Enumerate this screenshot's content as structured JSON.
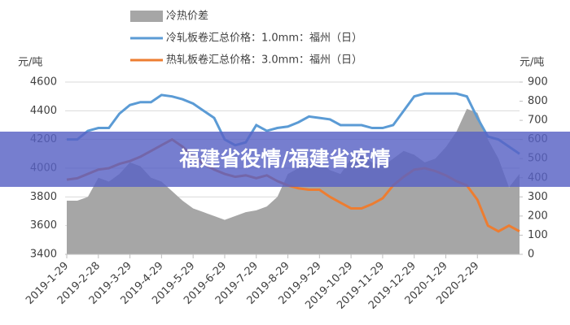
{
  "chart_data": {
    "type": "line",
    "y_unit_label": "元/吨",
    "y2_unit_label": "元/吨",
    "categories": [
      "2019-1-29",
      null,
      null,
      "2019-2-28",
      null,
      null,
      "2019-3-29",
      null,
      null,
      "2019-4-29",
      null,
      null,
      "2019-5-29",
      null,
      null,
      "2019-6-29",
      null,
      null,
      "2019-7-29",
      null,
      null,
      "2019-8-29",
      null,
      null,
      "2019-9-29",
      null,
      null,
      "2019-10-29",
      null,
      null,
      "2019-11-29",
      null,
      null,
      "2019-12-29",
      null,
      null,
      "2020-1-29",
      null,
      null,
      "2020-2-29",
      null,
      null,
      null,
      null
    ],
    "series": [
      {
        "name": "冷热价差",
        "kind": "area",
        "axis": "y2",
        "color": "#a6a6a6",
        "values": [
          280,
          280,
          300,
          400,
          380,
          420,
          480,
          460,
          400,
          380,
          330,
          280,
          240,
          220,
          200,
          180,
          200,
          220,
          230,
          250,
          300,
          420,
          450,
          470,
          480,
          440,
          420,
          500,
          520,
          480,
          460,
          500,
          540,
          520,
          480,
          500,
          560,
          640,
          760,
          740,
          600,
          500,
          350,
          420
        ]
      },
      {
        "name": "冷轧板卷汇总价格：1.0mm：福州（日）",
        "kind": "line",
        "axis": "y",
        "color": "#5b9bd5",
        "values": [
          4200,
          4200,
          4260,
          4280,
          4280,
          4380,
          4440,
          4460,
          4460,
          4510,
          4500,
          4480,
          4450,
          4400,
          4350,
          4200,
          4160,
          4180,
          4300,
          4260,
          4280,
          4290,
          4320,
          4360,
          4350,
          4340,
          4300,
          4300,
          4300,
          4280,
          4280,
          4300,
          4400,
          4500,
          4520,
          4520,
          4520,
          4520,
          4500,
          4350,
          4220,
          4200,
          4150,
          4100
        ]
      },
      {
        "name": "热轧板卷汇总价格：3.0mm：福州（日）",
        "kind": "line",
        "axis": "y",
        "color": "#ed7d31",
        "values": [
          3920,
          3930,
          3960,
          3990,
          4000,
          4030,
          4050,
          4080,
          4120,
          4160,
          4200,
          4150,
          4080,
          4030,
          3990,
          3960,
          3940,
          3950,
          3930,
          3950,
          3910,
          3880,
          3860,
          3850,
          3850,
          3800,
          3760,
          3720,
          3720,
          3750,
          3790,
          3880,
          3940,
          3990,
          4000,
          3980,
          3950,
          3910,
          3880,
          3780,
          3600,
          3560,
          3600,
          3560
        ]
      }
    ],
    "ylim": [
      3400,
      4600
    ],
    "yticks": [
      3400,
      3600,
      3800,
      4000,
      4200,
      4400,
      4600
    ],
    "y2lim": [
      0,
      900
    ],
    "y2ticks": [
      0,
      100,
      200,
      300,
      400,
      500,
      600,
      700,
      800,
      900
    ],
    "grid": true
  },
  "banner": {
    "text": "福建省役情/福建省疫情"
  }
}
